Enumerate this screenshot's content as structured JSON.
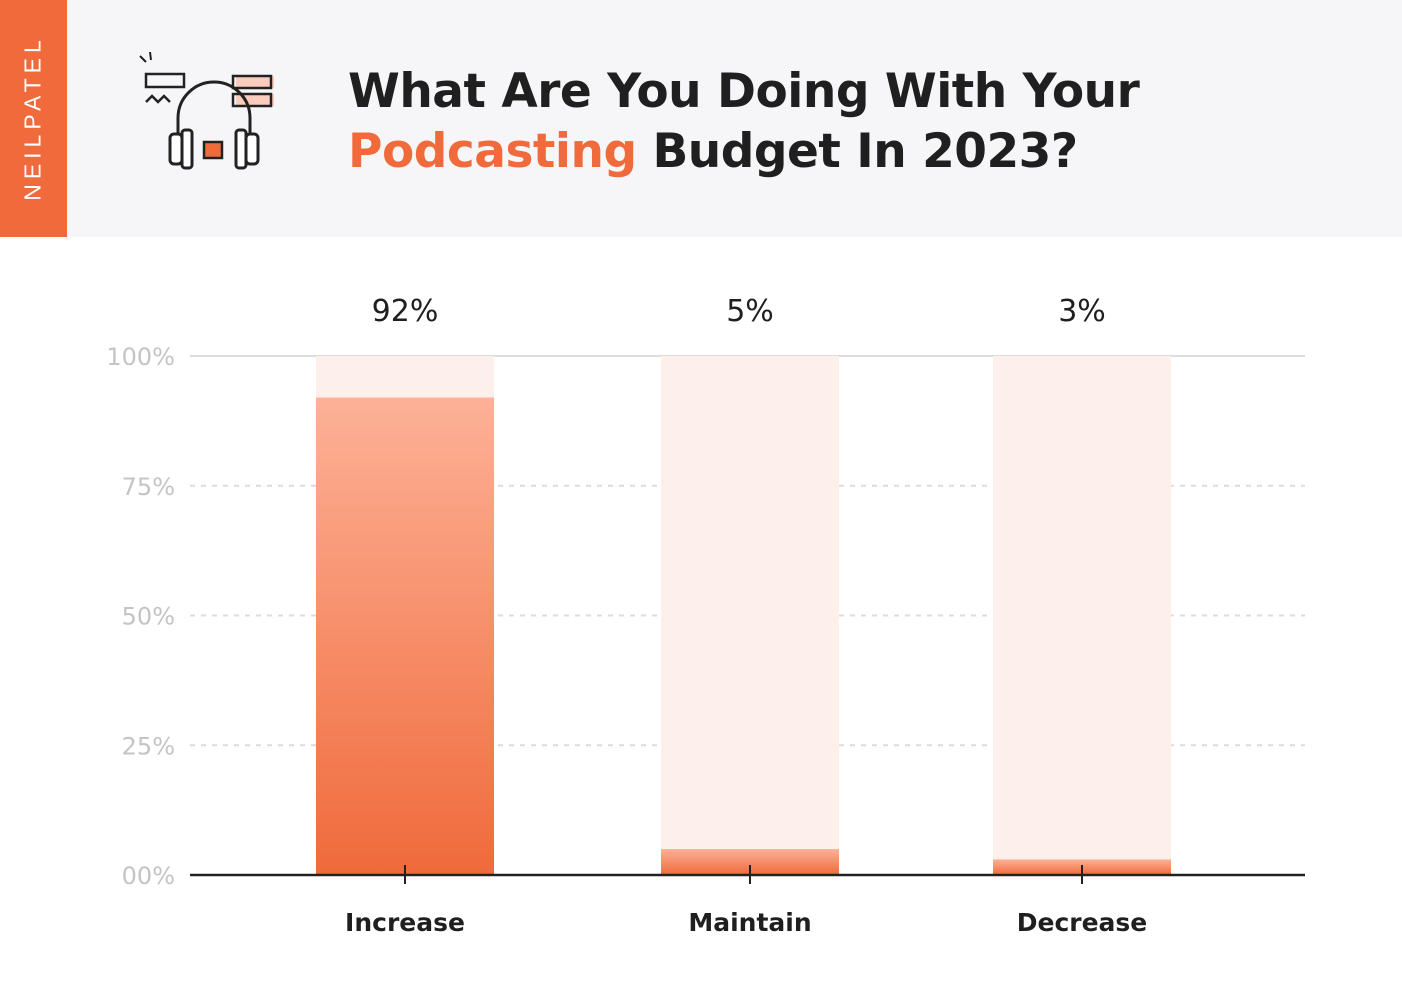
{
  "brand": "NEILPATEL",
  "title": {
    "line1": "What Are You Doing With Your",
    "accent_word": "Podcasting",
    "line2_rest": " Budget In 2023?"
  },
  "header_icon": "headphones-icon",
  "colors": {
    "brand": "#f06a3b",
    "bar_top": "#fdb197",
    "bar_bottom": "#f06a3b",
    "bar_track": "#fdefec",
    "header_bg": "#f6f6f8",
    "text": "#1f1f1f",
    "tick": "#c4c4c4"
  },
  "chart_data": {
    "type": "bar",
    "title": "What Are You Doing With Your Podcasting Budget In 2023?",
    "categories": [
      "Increase",
      "Maintain",
      "Decrease"
    ],
    "values": [
      92,
      5,
      3
    ],
    "value_labels": [
      "92%",
      "5%",
      "3%"
    ],
    "ylim": [
      0,
      100
    ],
    "yticks": [
      0,
      25,
      50,
      75,
      100
    ],
    "ytick_labels": [
      "00%",
      "25%",
      "50%",
      "75%",
      "100%"
    ],
    "xlabel": "",
    "ylabel": "",
    "grid": true,
    "legend": "none"
  }
}
